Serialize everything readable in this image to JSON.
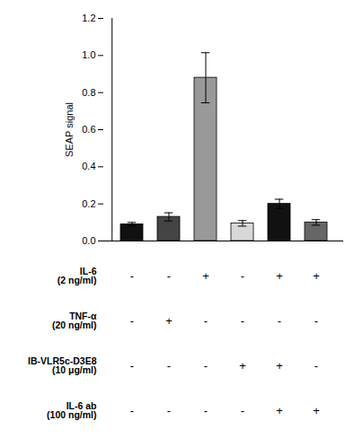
{
  "chart_data": {
    "type": "bar",
    "categories": [
      null,
      null,
      null,
      null,
      null,
      null
    ],
    "values": [
      0.09,
      0.13,
      0.88,
      0.095,
      0.2,
      0.1
    ],
    "errors": [
      0.01,
      0.022,
      0.135,
      0.015,
      0.025,
      0.015
    ],
    "colors": [
      "#111111",
      "#444444",
      "#999999",
      "#d8d8d8",
      "#111111",
      "#666666"
    ],
    "ylabel": "SEAP signal",
    "ylim": [
      0,
      1.2
    ],
    "yticks": [
      {
        "value": 0,
        "label": "0.0"
      },
      0.2,
      0.4,
      0.6,
      0.8,
      {
        "value": 1,
        "label": "1.0"
      },
      1.2
    ],
    "tick_labels": "y",
    "table_rows": [
      {
        "label": "IL-6\n(2 ng/ml)",
        "signs": [
          "-",
          "-",
          "+",
          "-",
          "+",
          "+"
        ]
      },
      {
        "label": "TNF-α\n(20 ng/ml)",
        "signs": [
          "-",
          "+",
          "-",
          "-",
          "-",
          "-"
        ]
      },
      {
        "label": "IB-VLR5c-D3E8\n(10 μg/ml)",
        "signs": [
          "-",
          "-",
          "-",
          "+",
          "+",
          "-"
        ]
      },
      {
        "label": "IL-6 ab\n(100 ng/ml)",
        "signs": [
          "-",
          "-",
          "-",
          "-",
          "+",
          "+"
        ]
      }
    ]
  }
}
